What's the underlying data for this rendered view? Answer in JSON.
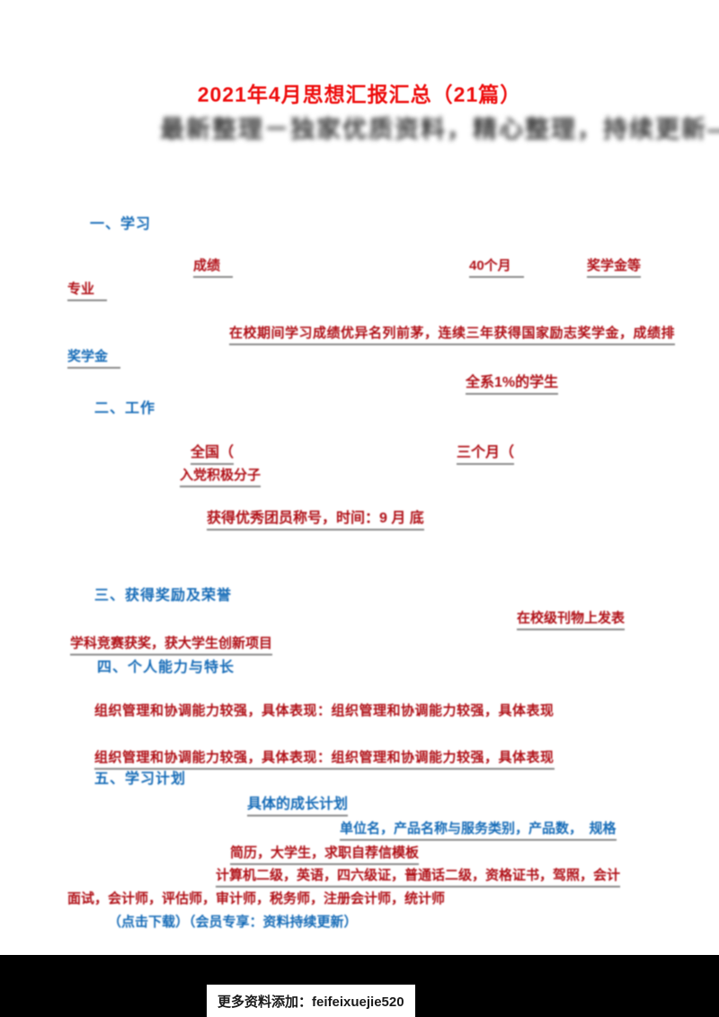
{
  "document": {
    "title": "2021年4月思想汇报汇总（21篇）",
    "subtitle": "最新整理－独家优质资料，精心整理，持续更新——",
    "sections": {
      "h1": "一、学习",
      "h2": "二、工作",
      "h3": "三、获得奖励及荣誉",
      "h4": "四、个人能力与特长",
      "h5": "五、学习计划"
    },
    "fragments": {
      "grade": "成绩",
      "months": "40个月",
      "award": "奖学金等",
      "major": "专业",
      "study_line": "在校期间学习成绩优异名列前茅，连续三年获得国家励志奖学金，成绩排",
      "scholarship": "奖学金",
      "top_percent": "全系1%的学生",
      "national": "全国（",
      "three_months": "三个月（",
      "trainee": "入党积极分子",
      "excellent": "获得优秀团员称号，时间：9 月 底",
      "publish": "在校级刊物上发表",
      "competition": "学科竞赛获奖，获大学生创新项目",
      "ability_1": "组织管理和协调能力较强，具体表现：组织管理和协调能力较强，具体表现",
      "ability_2": "组织管理和协调能力较强，具体表现：组织管理和协调能力较强，具体表现",
      "plan": "具体的成长计划",
      "unit_line": "单位名，产品名称与服务类别，产品数，　规格",
      "school_line": "简历，大学生，求职自荐信模板",
      "certs_line": "计算机二级，英语，四六级证，普通话二级，资格证书，驾照，会计",
      "jobs_line": "面试，会计师，评估师，审计师，税务师，注册会计师，统计师",
      "note_line": "（点击下载）（会员专享：资料持续更新）"
    },
    "footer": {
      "text": "更多资料添加：feifeixuejie520"
    },
    "colors": {
      "title_red": "#ee0e0e",
      "body_red": "#b00f16",
      "blue": "#156bb7",
      "underline_gray": "#8a8a8a",
      "subtitle_gray": "#3d3d3d",
      "footer_bg": "#000000"
    }
  }
}
